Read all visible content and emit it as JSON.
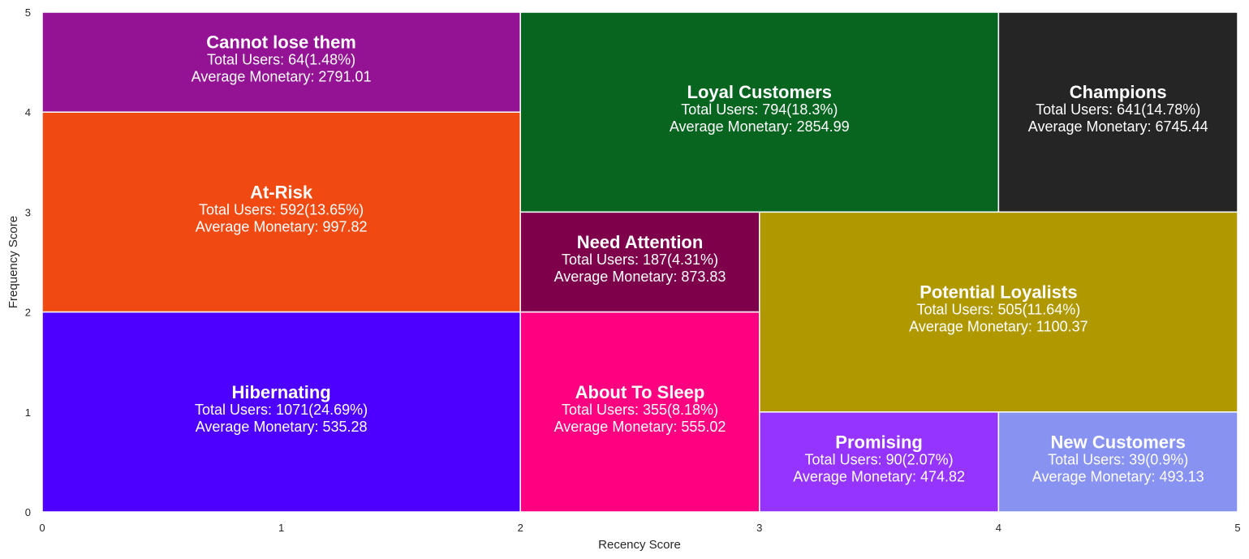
{
  "chart_data": {
    "type": "treemap",
    "xlabel": "Recency Score",
    "ylabel": "Frequency Score",
    "xlim": [
      0,
      5
    ],
    "ylim": [
      0,
      5
    ],
    "xticks": [
      "0",
      "1",
      "2",
      "3",
      "4",
      "5"
    ],
    "yticks": [
      "0",
      "1",
      "2",
      "3",
      "4",
      "5"
    ],
    "grid": false,
    "segments": [
      {
        "name": "Cannot lose them",
        "users_text": "Total Users: 64(1.48%)",
        "monetary_text": "Average Monetary: 2791.01",
        "users": 64,
        "share_pct": 1.48,
        "avg_monetary": 2791.01,
        "x": [
          0,
          2
        ],
        "y": [
          4,
          5
        ],
        "color": "#941394"
      },
      {
        "name": "At-Risk",
        "users_text": "Total Users: 592(13.65%)",
        "monetary_text": "Average Monetary: 997.82",
        "users": 592,
        "share_pct": 13.65,
        "avg_monetary": 997.82,
        "x": [
          0,
          2
        ],
        "y": [
          2,
          4
        ],
        "color": "#F04A12"
      },
      {
        "name": "Hibernating",
        "users_text": "Total Users: 1071(24.69%)",
        "monetary_text": "Average Monetary: 535.28",
        "users": 1071,
        "share_pct": 24.69,
        "avg_monetary": 535.28,
        "x": [
          0,
          2
        ],
        "y": [
          0,
          2
        ],
        "color": "#4D00FF"
      },
      {
        "name": "Loyal Customers",
        "users_text": "Total Users: 794(18.3%)",
        "monetary_text": "Average Monetary: 2854.99",
        "users": 794,
        "share_pct": 18.3,
        "avg_monetary": 2854.99,
        "x": [
          2,
          4
        ],
        "y": [
          3,
          5
        ],
        "color": "#07651F"
      },
      {
        "name": "Champions",
        "users_text": "Total Users: 641(14.78%)",
        "monetary_text": "Average Monetary: 6745.44",
        "users": 641,
        "share_pct": 14.78,
        "avg_monetary": 6745.44,
        "x": [
          4,
          5
        ],
        "y": [
          3,
          5
        ],
        "color": "#252525"
      },
      {
        "name": "Need Attention",
        "users_text": "Total Users: 187(4.31%)",
        "monetary_text": "Average Monetary: 873.83",
        "users": 187,
        "share_pct": 4.31,
        "avg_monetary": 873.83,
        "x": [
          2,
          3
        ],
        "y": [
          2,
          3
        ],
        "color": "#7E004B"
      },
      {
        "name": "Potential Loyalists",
        "users_text": "Total Users: 505(11.64%)",
        "monetary_text": "Average Monetary: 1100.37",
        "users": 505,
        "share_pct": 11.64,
        "avg_monetary": 1100.37,
        "x": [
          3,
          5
        ],
        "y": [
          1,
          3
        ],
        "color": "#B09800"
      },
      {
        "name": "About To Sleep",
        "users_text": "Total Users: 355(8.18%)",
        "monetary_text": "Average Monetary: 555.02",
        "users": 355,
        "share_pct": 8.18,
        "avg_monetary": 555.02,
        "x": [
          2,
          3
        ],
        "y": [
          0,
          2
        ],
        "color": "#FF0080"
      },
      {
        "name": "Promising",
        "users_text": "Total Users: 90(2.07%)",
        "monetary_text": "Average Monetary: 474.82",
        "users": 90,
        "share_pct": 2.07,
        "avg_monetary": 474.82,
        "x": [
          3,
          4
        ],
        "y": [
          0,
          1
        ],
        "color": "#9533FF"
      },
      {
        "name": "New Customers",
        "users_text": "Total Users: 39(0.9%)",
        "monetary_text": "Average Monetary: 493.13",
        "users": 39,
        "share_pct": 0.9,
        "avg_monetary": 493.13,
        "x": [
          4,
          5
        ],
        "y": [
          0,
          1
        ],
        "color": "#8892F0"
      }
    ]
  }
}
